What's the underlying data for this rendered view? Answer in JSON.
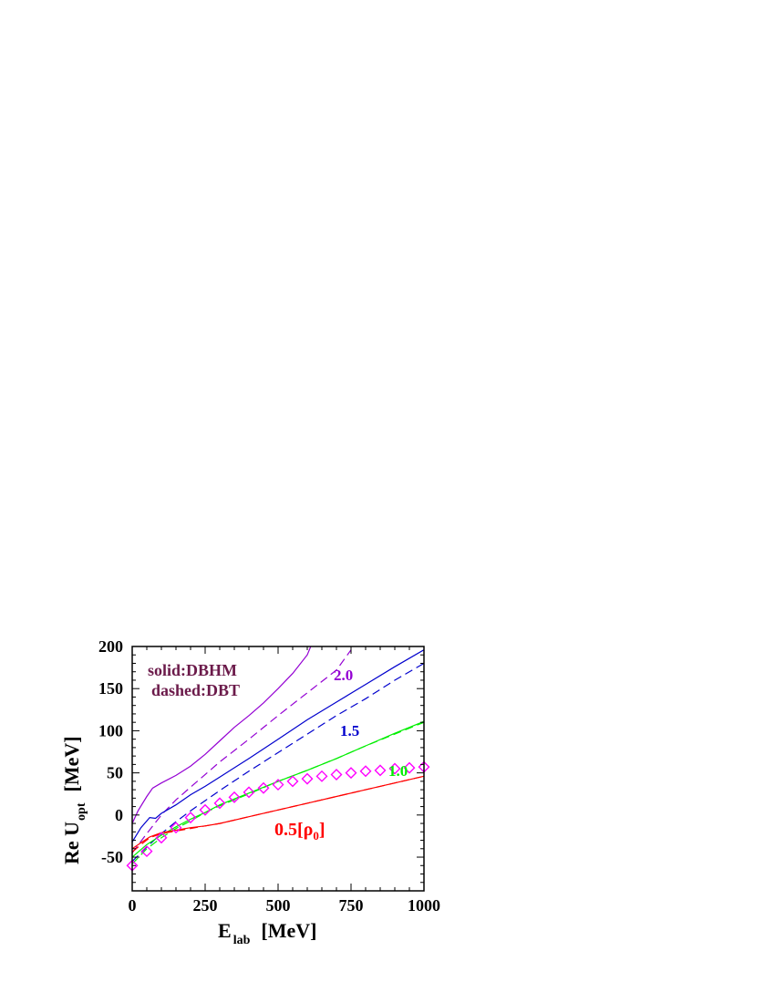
{
  "chart_data": {
    "type": "line",
    "xlabel": {
      "main": "E",
      "sub": "lab",
      "unit": "[MeV]"
    },
    "ylabel": {
      "main": "Re U",
      "sub": "opt",
      "unit": "[MeV]"
    },
    "xlim": [
      0,
      1000
    ],
    "ylim": [
      -90,
      200
    ],
    "x_ticks": [
      0,
      250,
      500,
      750,
      1000
    ],
    "y_ticks": [
      -50,
      0,
      50,
      100,
      150,
      200
    ],
    "grid": false,
    "legend": {
      "line1": "solid:DBHM",
      "line2": "dashed:DBT",
      "placement": "top-left"
    },
    "density_labels": {
      "d20": "2.0",
      "d15": "1.5",
      "d10": "1.0",
      "d05_main": "0.5[",
      "d05_rho": "ρ",
      "d05_sub": "0",
      "d05_close": "]"
    },
    "series": [
      {
        "density": "2.0",
        "style": "solid",
        "color": "#9400d3",
        "x": [
          0,
          20,
          50,
          70,
          100,
          150,
          200,
          250,
          300,
          350,
          400,
          450,
          500,
          550,
          600,
          612
        ],
        "y": [
          -10,
          5,
          22,
          32,
          38,
          47,
          58,
          72,
          88,
          104,
          118,
          133,
          150,
          168,
          190,
          200
        ]
      },
      {
        "density": "2.0",
        "style": "dashed",
        "color": "#9400d3",
        "x": [
          0,
          50,
          100,
          150,
          200,
          300,
          400,
          500,
          600,
          700,
          750
        ],
        "y": [
          -45,
          -22,
          0,
          18,
          33,
          63,
          90,
          118,
          145,
          172,
          196
        ]
      },
      {
        "density": "1.5",
        "style": "solid",
        "color": "#0000cd",
        "x": [
          0,
          30,
          60,
          80,
          100,
          150,
          200,
          250,
          300,
          400,
          500,
          600,
          700,
          800,
          900,
          1000
        ],
        "y": [
          -32,
          -15,
          -3,
          -4,
          2,
          12,
          24,
          34,
          45,
          67,
          90,
          113,
          134,
          155,
          176,
          196
        ]
      },
      {
        "density": "1.5",
        "style": "dashed",
        "color": "#0000cd",
        "x": [
          0,
          50,
          100,
          150,
          200,
          250,
          300,
          400,
          500,
          600,
          700,
          800,
          900,
          1000
        ],
        "y": [
          -55,
          -38,
          -22,
          -8,
          5,
          17,
          29,
          52,
          74,
          96,
          118,
          138,
          160,
          180
        ]
      },
      {
        "density": "1.0",
        "style": "solid",
        "color": "#00ee00",
        "x": [
          0,
          50,
          100,
          150,
          200,
          250,
          300,
          400,
          500,
          600,
          700,
          800,
          900,
          1000
        ],
        "y": [
          -50,
          -35,
          -24,
          -14,
          -5,
          3,
          12,
          26,
          40,
          53,
          67,
          82,
          97,
          111
        ]
      },
      {
        "density": "1.0",
        "style": "dashed",
        "color": "#00ee00",
        "x": [
          0,
          50,
          100,
          150,
          200,
          250,
          300,
          400,
          500,
          600,
          700,
          800,
          900,
          1000
        ],
        "y": [
          -58,
          -40,
          -27,
          -16,
          -7,
          3,
          11,
          25,
          40,
          53,
          67,
          82,
          96,
          110
        ]
      },
      {
        "density": "0.5",
        "style": "solid",
        "color": "#ff0000",
        "x": [
          0,
          30,
          60,
          100,
          150,
          200,
          250,
          300,
          400,
          500,
          600,
          700,
          800,
          900,
          1000
        ],
        "y": [
          -40,
          -33,
          -26,
          -21,
          -18,
          -15,
          -13,
          -10,
          -2,
          6,
          14,
          22,
          30,
          38,
          46
        ]
      },
      {
        "density": "0.5",
        "style": "dashed",
        "color": "#ff0000",
        "x": [
          0,
          30,
          60,
          100,
          150,
          200,
          250,
          300,
          400,
          500,
          600,
          700,
          800,
          900,
          1000
        ],
        "y": [
          -44,
          -35,
          -27,
          -22,
          -19,
          -16,
          -13,
          -10,
          -2,
          6,
          14,
          22,
          30,
          38,
          46
        ]
      },
      {
        "density": "data",
        "style": "markers",
        "marker": "diamond",
        "color": "#ff00ff",
        "x": [
          0,
          50,
          100,
          150,
          200,
          250,
          300,
          350,
          400,
          450,
          500,
          550,
          600,
          650,
          700,
          750,
          800,
          850,
          900,
          950,
          1000
        ],
        "y": [
          -60,
          -43,
          -27,
          -15,
          -3,
          6,
          14,
          21,
          27,
          32,
          36,
          40,
          43,
          46,
          48,
          50,
          52,
          53,
          55,
          56,
          57
        ]
      }
    ]
  }
}
